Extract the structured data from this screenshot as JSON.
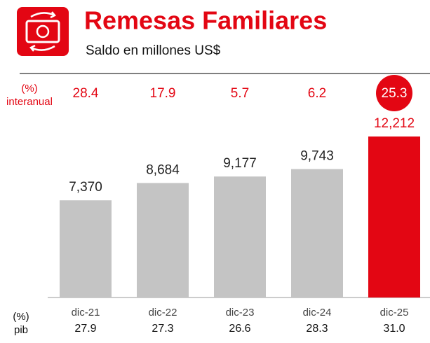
{
  "chart_data": {
    "type": "bar",
    "title": "Remesas Familiares",
    "subtitle": "Saldo en millones US$",
    "categories": [
      "dic-21",
      "dic-22",
      "dic-23",
      "dic-24",
      "dic-25"
    ],
    "values": [
      7370,
      8684,
      9177,
      9743,
      12212
    ],
    "value_labels": [
      "7,370",
      "8,684",
      "9,177",
      "9,743",
      "12,212"
    ],
    "colors": [
      "#c4c4c4",
      "#c4c4c4",
      "#c4c4c4",
      "#c4c4c4",
      "#e30613"
    ],
    "interanual": {
      "label": [
        "(%)",
        "interanual"
      ],
      "values": [
        28.4,
        17.9,
        5.7,
        6.2,
        25.3
      ],
      "color": "#e30613",
      "highlight": 4
    },
    "pib": {
      "label": [
        "(%)",
        "pib"
      ],
      "values": [
        27.9,
        27.3,
        26.6,
        28.3,
        31.0
      ],
      "value_labels": [
        "27.9",
        "27.3",
        "26.6",
        "28.3",
        "31.0"
      ]
    }
  }
}
